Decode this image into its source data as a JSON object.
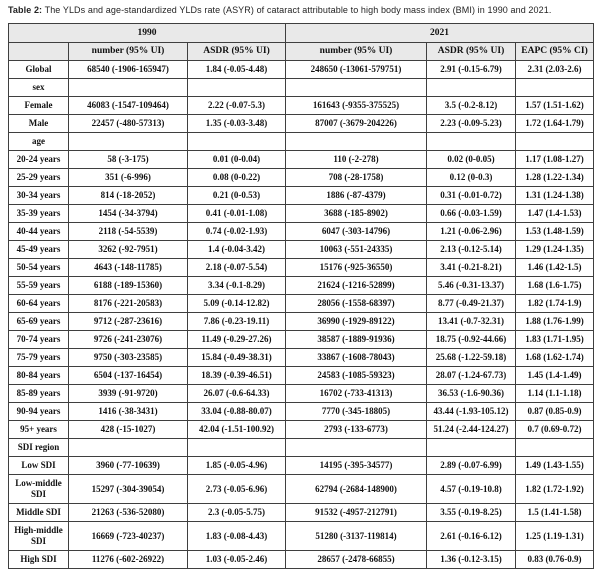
{
  "title": {
    "prefix": "Table 2:",
    "rest": " The YLDs and age-standardized YLDs rate (ASYR) of cataract attributable to high body mass index (BMI) in 1990 and 2021."
  },
  "colors": {
    "header_bg": "#e9e9e9",
    "grid_border": "#3f3f3f",
    "text": "#141414"
  },
  "table": {
    "year_groups": [
      {
        "label": "1990",
        "span": 3
      },
      {
        "label": "2021",
        "span": 3
      }
    ],
    "columns": [
      "",
      "number (95% UI)",
      "ASDR (95% UI)",
      "number (95% UI)",
      "ASDR (95% UI)",
      "EAPC (95% CI)"
    ],
    "rows": [
      {
        "label": "Global",
        "type": "data",
        "cells": [
          "68540 (-1906-165947)",
          "1.84 (-0.05-4.48)",
          "248650 (-13061-579751)",
          "2.91 (-0.15-6.79)",
          "2.31 (2.03-2.6)"
        ]
      },
      {
        "label": "sex",
        "type": "section",
        "cells": [
          "",
          "",
          "",
          "",
          ""
        ]
      },
      {
        "label": "Female",
        "type": "data",
        "cells": [
          "46083 (-1547-109464)",
          "2.22 (-0.07-5.3)",
          "161643 (-9355-375525)",
          "3.5 (-0.2-8.12)",
          "1.57 (1.51-1.62)"
        ]
      },
      {
        "label": "Male",
        "type": "data",
        "cells": [
          "22457 (-480-57313)",
          "1.35 (-0.03-3.48)",
          "87007 (-3679-204226)",
          "2.23 (-0.09-5.23)",
          "1.72 (1.64-1.79)"
        ]
      },
      {
        "label": "age",
        "type": "section",
        "cells": [
          "",
          "",
          "",
          "",
          ""
        ]
      },
      {
        "label": "20-24 years",
        "type": "data",
        "cells": [
          "58 (-3-175)",
          "0.01 (0-0.04)",
          "110 (-2-278)",
          "0.02 (0-0.05)",
          "1.17 (1.08-1.27)"
        ]
      },
      {
        "label": "25-29 years",
        "type": "data",
        "cells": [
          "351 (-6-996)",
          "0.08 (0-0.22)",
          "708 (-28-1758)",
          "0.12 (0-0.3)",
          "1.28 (1.22-1.34)"
        ]
      },
      {
        "label": "30-34 years",
        "type": "data",
        "cells": [
          "814 (-18-2052)",
          "0.21 (0-0.53)",
          "1886 (-87-4379)",
          "0.31 (-0.01-0.72)",
          "1.31 (1.24-1.38)"
        ]
      },
      {
        "label": "35-39 years",
        "type": "data",
        "cells": [
          "1454 (-34-3794)",
          "0.41 (-0.01-1.08)",
          "3688 (-185-8902)",
          "0.66 (-0.03-1.59)",
          "1.47 (1.4-1.53)"
        ]
      },
      {
        "label": "40-44 years",
        "type": "data",
        "cells": [
          "2118 (-54-5539)",
          "0.74 (-0.02-1.93)",
          "6047 (-303-14796)",
          "1.21 (-0.06-2.96)",
          "1.53 (1.48-1.59)"
        ]
      },
      {
        "label": "45-49 years",
        "type": "data",
        "cells": [
          "3262 (-92-7951)",
          "1.4 (-0.04-3.42)",
          "10063 (-551-24335)",
          "2.13 (-0.12-5.14)",
          "1.29 (1.24-1.35)"
        ]
      },
      {
        "label": "50-54 years",
        "type": "data",
        "cells": [
          "4643 (-148-11785)",
          "2.18 (-0.07-5.54)",
          "15176 (-925-36550)",
          "3.41 (-0.21-8.21)",
          "1.46 (1.42-1.5)"
        ]
      },
      {
        "label": "55-59 years",
        "type": "data",
        "cells": [
          "6188 (-189-15360)",
          "3.34 (-0.1-8.29)",
          "21624 (-1216-52899)",
          "5.46 (-0.31-13.37)",
          "1.68 (1.6-1.75)"
        ]
      },
      {
        "label": "60-64 years",
        "type": "data",
        "cells": [
          "8176 (-221-20583)",
          "5.09 (-0.14-12.82)",
          "28056 (-1558-68397)",
          "8.77 (-0.49-21.37)",
          "1.82 (1.74-1.9)"
        ]
      },
      {
        "label": "65-69 years",
        "type": "data",
        "cells": [
          "9712 (-287-23616)",
          "7.86 (-0.23-19.11)",
          "36990 (-1929-89122)",
          "13.41 (-0.7-32.31)",
          "1.88 (1.76-1.99)"
        ]
      },
      {
        "label": "70-74 years",
        "type": "data",
        "cells": [
          "9726 (-241-23076)",
          "11.49 (-0.29-27.26)",
          "38587 (-1889-91936)",
          "18.75 (-0.92-44.66)",
          "1.83 (1.71-1.95)"
        ]
      },
      {
        "label": "75-79 years",
        "type": "data",
        "cells": [
          "9750 (-303-23585)",
          "15.84 (-0.49-38.31)",
          "33867 (-1608-78043)",
          "25.68 (-1.22-59.18)",
          "1.68 (1.62-1.74)"
        ]
      },
      {
        "label": "80-84 years",
        "type": "data",
        "cells": [
          "6504 (-137-16454)",
          "18.39 (-0.39-46.51)",
          "24583 (-1085-59323)",
          "28.07 (-1.24-67.73)",
          "1.45 (1.4-1.49)"
        ]
      },
      {
        "label": "85-89 years",
        "type": "data",
        "cells": [
          "3939 (-91-9720)",
          "26.07 (-0.6-64.33)",
          "16702 (-733-41313)",
          "36.53 (-1.6-90.36)",
          "1.14 (1.1-1.18)"
        ]
      },
      {
        "label": "90-94 years",
        "type": "data",
        "cells": [
          "1416 (-38-3431)",
          "33.04 (-0.88-80.07)",
          "7770 (-345-18805)",
          "43.44 (-1.93-105.12)",
          "0.87 (0.85-0.9)"
        ]
      },
      {
        "label": "95+ years",
        "type": "data",
        "cells": [
          "428 (-15-1027)",
          "42.04 (-1.51-100.92)",
          "2793 (-133-6773)",
          "51.24 (-2.44-124.27)",
          "0.7 (0.69-0.72)"
        ]
      },
      {
        "label": "SDI region",
        "type": "section",
        "cells": [
          "",
          "",
          "",
          "",
          ""
        ]
      },
      {
        "label": "Low SDI",
        "type": "data",
        "cells": [
          "3960 (-77-10639)",
          "1.85 (-0.05-4.96)",
          "14195 (-395-34577)",
          "2.89 (-0.07-6.99)",
          "1.49 (1.43-1.55)"
        ]
      },
      {
        "label": "Low-middle SDI",
        "type": "data",
        "cells": [
          "15297 (-304-39054)",
          "2.73 (-0.05-6.96)",
          "62794 (-2684-148900)",
          "4.57 (-0.19-10.8)",
          "1.82 (1.72-1.92)"
        ]
      },
      {
        "label": "Middle SDI",
        "type": "data",
        "cells": [
          "21263 (-536-52080)",
          "2.3 (-0.05-5.75)",
          "91532 (-4957-212791)",
          "3.55 (-0.19-8.25)",
          "1.5 (1.41-1.58)"
        ]
      },
      {
        "label": "High-middle SDI",
        "type": "data",
        "cells": [
          "16669 (-723-40237)",
          "1.83 (-0.08-4.43)",
          "51280 (-3137-119814)",
          "2.61 (-0.16-6.12)",
          "1.25 (1.19-1.31)"
        ]
      },
      {
        "label": "High SDI",
        "type": "data",
        "cells": [
          "11276 (-602-26922)",
          "1.03 (-0.05-2.46)",
          "28657 (-2478-66855)",
          "1.36 (-0.12-3.15)",
          "0.83 (0.76-0.9)"
        ]
      }
    ]
  }
}
